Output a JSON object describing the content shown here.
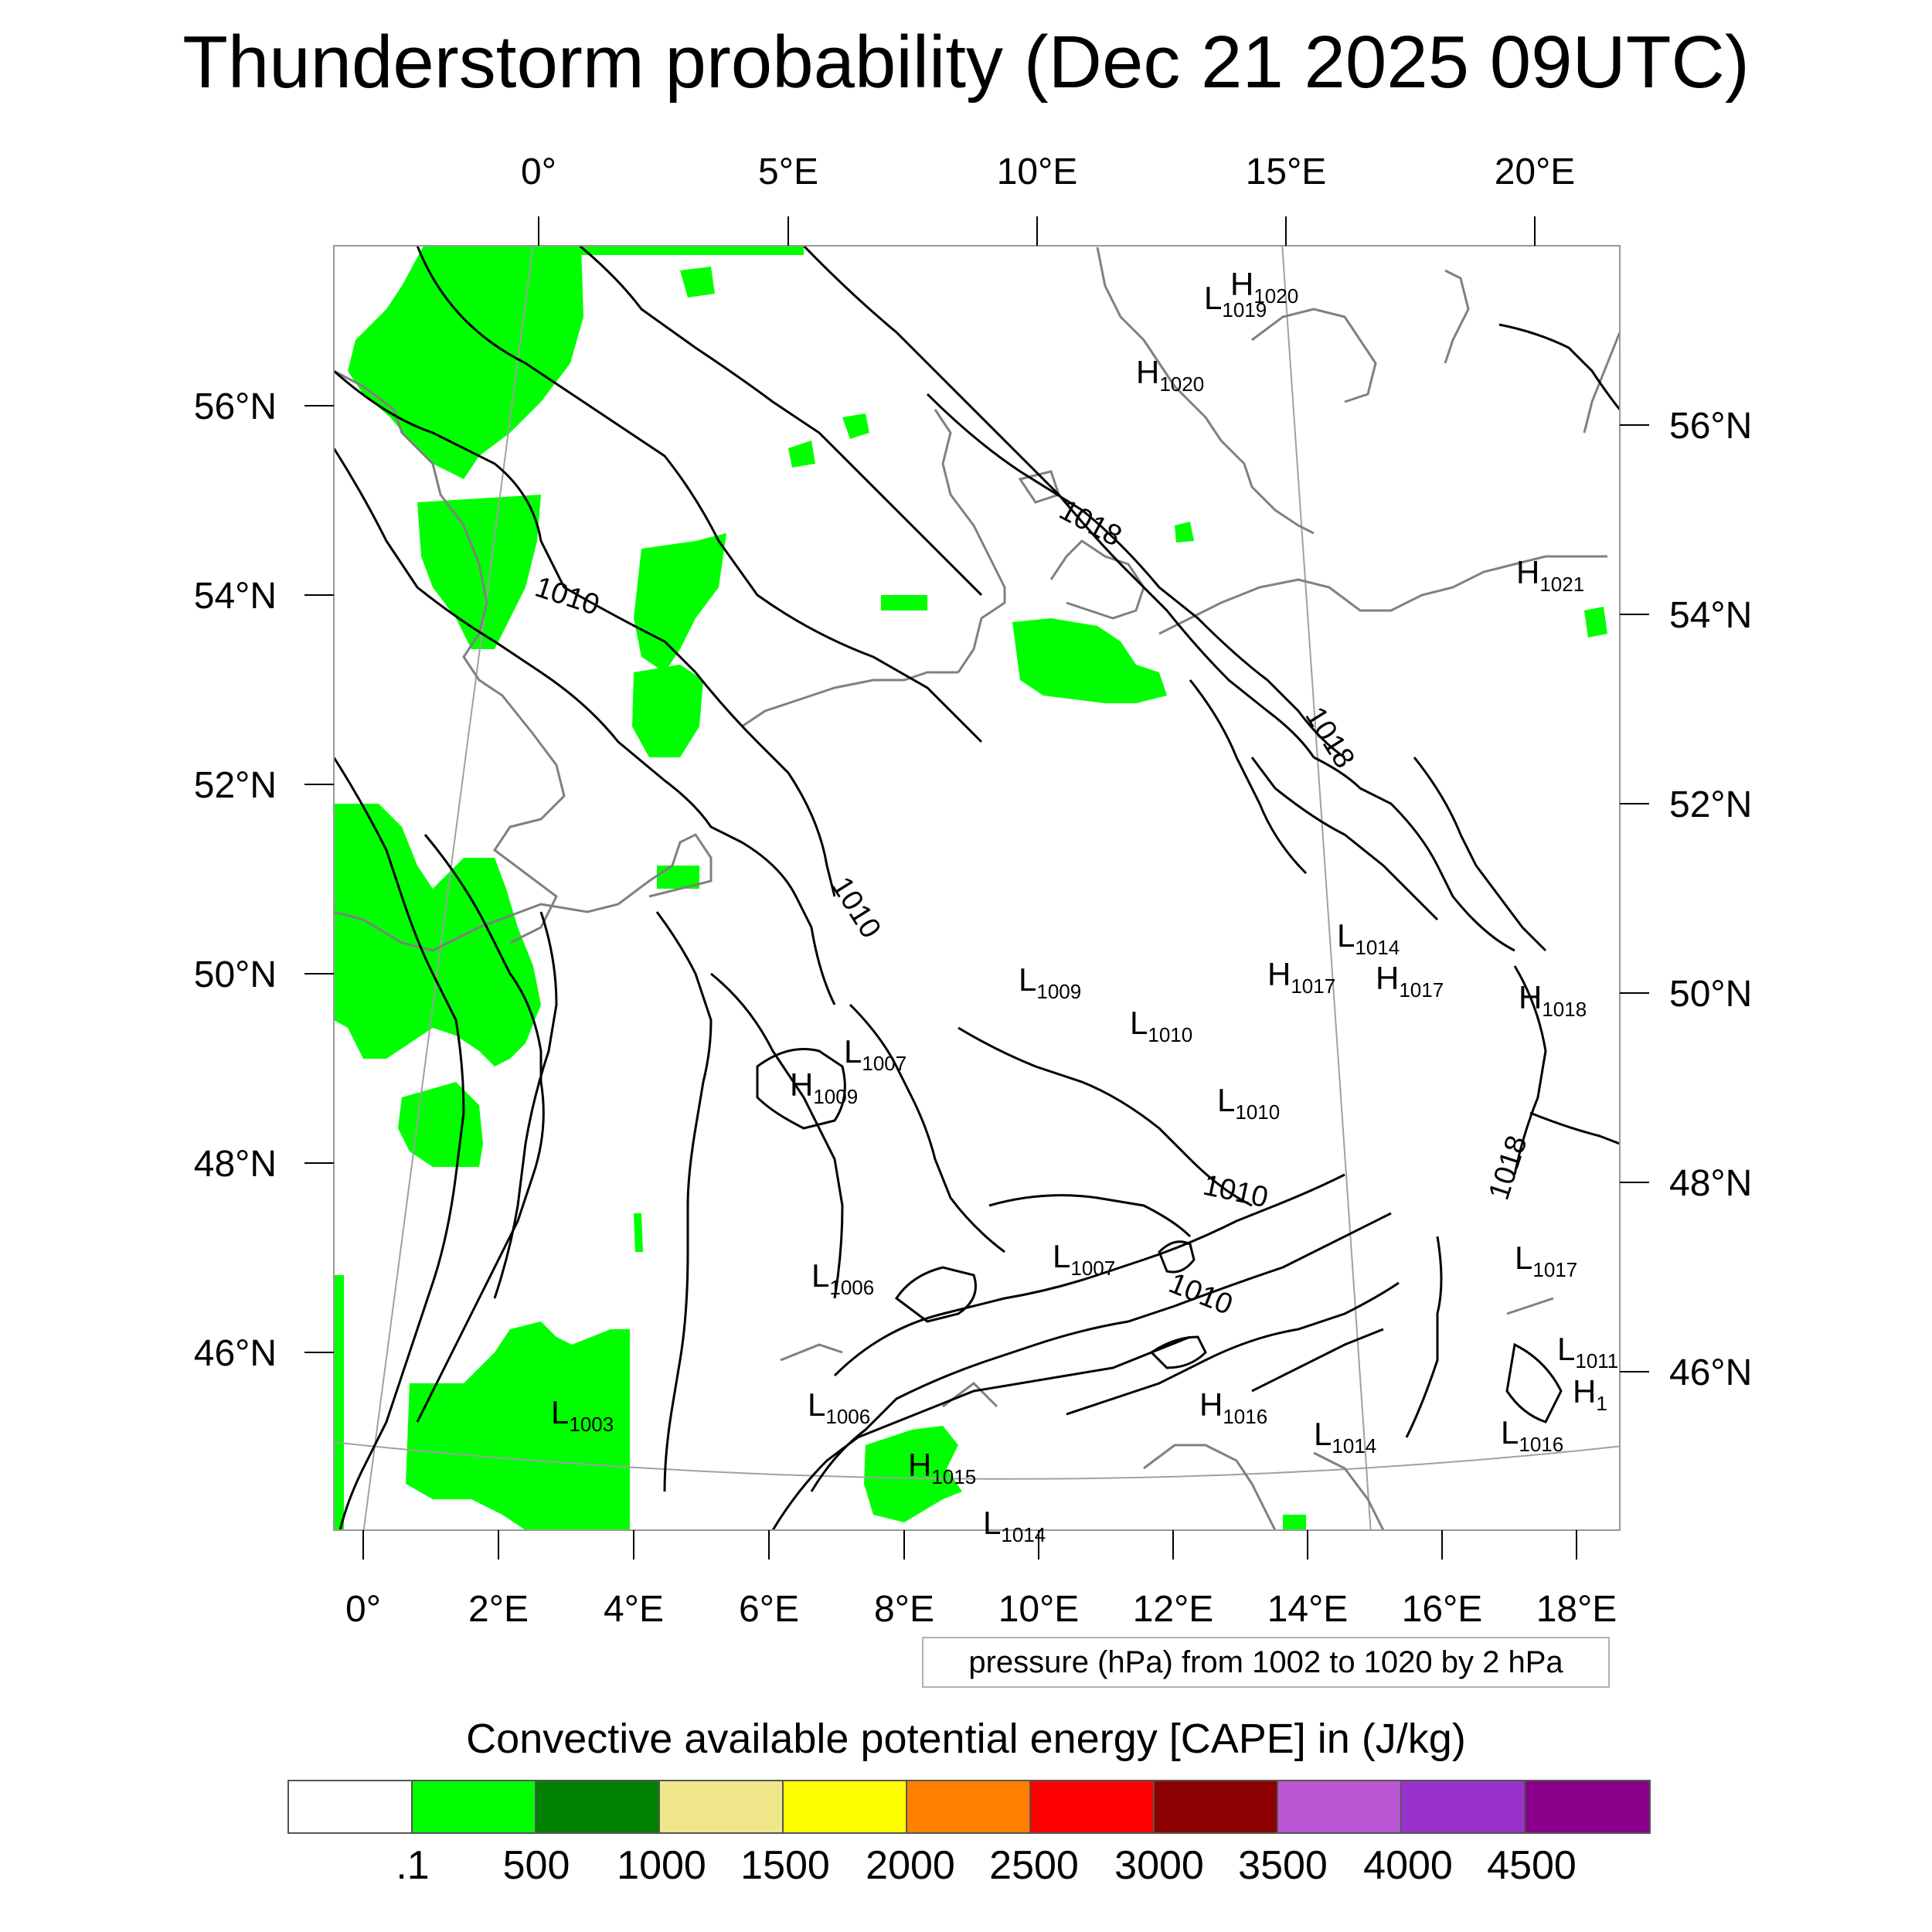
{
  "title": "Thunderstorm probability (Dec 21 2025 09UTC)",
  "axes": {
    "top_lon": [
      "0°",
      "5°E",
      "10°E",
      "15°E",
      "20°E"
    ],
    "bottom_lon": [
      "0°",
      "2°E",
      "4°E",
      "6°E",
      "8°E",
      "10°E",
      "12°E",
      "14°E",
      "16°E",
      "18°E"
    ],
    "left_lat": [
      "56°N",
      "54°N",
      "52°N",
      "50°N",
      "48°N",
      "46°N"
    ],
    "right_lat": [
      "56°N",
      "54°N",
      "52°N",
      "50°N",
      "48°N",
      "46°N"
    ]
  },
  "contour_info": "pressure (hPa) from 1002 to 1020 by 2 hPa",
  "isobar_labels": [
    {
      "text": "1010"
    },
    {
      "text": "1010"
    },
    {
      "text": "1010"
    },
    {
      "text": "1010"
    },
    {
      "text": "1018"
    },
    {
      "text": "1018"
    },
    {
      "text": "1018"
    }
  ],
  "pressure_centers": [
    {
      "type": "L",
      "value": "1019"
    },
    {
      "type": "H",
      "value": "1020"
    },
    {
      "type": "H",
      "value": "1020"
    },
    {
      "type": "H",
      "value": "1021"
    },
    {
      "type": "L",
      "value": "1014"
    },
    {
      "type": "H",
      "value": "1017"
    },
    {
      "type": "H",
      "value": "1017"
    },
    {
      "type": "H",
      "value": "1018"
    },
    {
      "type": "L",
      "value": "1009"
    },
    {
      "type": "L",
      "value": "1010"
    },
    {
      "type": "L",
      "value": "1010"
    },
    {
      "type": "L",
      "value": "1007"
    },
    {
      "type": "H",
      "value": "1009"
    },
    {
      "type": "L",
      "value": "1007"
    },
    {
      "type": "L",
      "value": "1006"
    },
    {
      "type": "L",
      "value": "1006"
    },
    {
      "type": "L",
      "value": "1003"
    },
    {
      "type": "H",
      "value": "1015"
    },
    {
      "type": "H",
      "value": "1016"
    },
    {
      "type": "L",
      "value": "1014"
    },
    {
      "type": "L",
      "value": "1017"
    },
    {
      "type": "L",
      "value": "1016"
    },
    {
      "type": "L",
      "value": "1011"
    },
    {
      "type": "L",
      "value": "1014"
    },
    {
      "type": "H",
      "value": "1"
    }
  ],
  "colorbar": {
    "title": "Convective available potential energy [CAPE] in (J/kg)",
    "colors": [
      "#ffffff",
      "#00ff00",
      "#008000",
      "#f0e68c",
      "#ffff00",
      "#ff8000",
      "#ff0000",
      "#8b0000",
      "#ba55d3",
      "#9932cc",
      "#8b008b"
    ],
    "labels": [
      ".1",
      "500",
      "1000",
      "1500",
      "2000",
      "2500",
      "3000",
      "3500",
      "4000",
      "4500"
    ]
  },
  "colors": {
    "cape_fill": "#00ff00",
    "isobar": "#000000",
    "coastline": "#808080",
    "graticule": "#a0a0a0"
  }
}
